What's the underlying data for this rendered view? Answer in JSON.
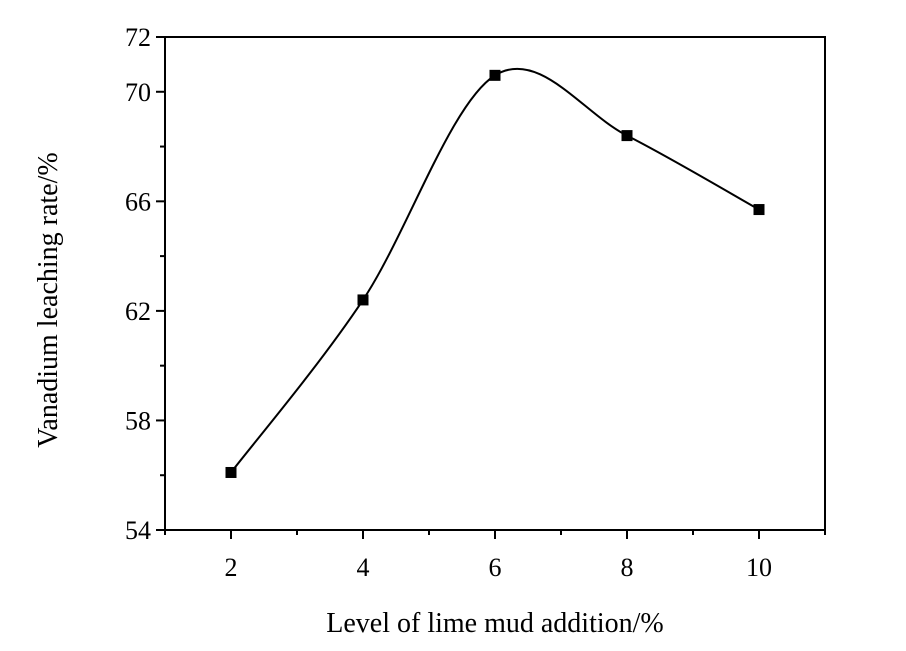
{
  "chart_data": {
    "type": "line",
    "title": "",
    "xlabel": "Level of lime mud addition/%",
    "ylabel": "Vanadium leaching rate/%",
    "xlim": [
      1,
      11
    ],
    "ylim": [
      54,
      72
    ],
    "x_ticks": [
      2,
      4,
      6,
      8,
      10
    ],
    "y_ticks": [
      54,
      58,
      62,
      66,
      70,
      72
    ],
    "grid": false,
    "legend": "none",
    "series": [
      {
        "x": [
          2,
          4,
          6,
          8,
          10
        ],
        "y": [
          56.1,
          62.4,
          70.6,
          68.4,
          65.7
        ],
        "marker": "square",
        "smooth": true,
        "color": "#000000"
      }
    ]
  }
}
